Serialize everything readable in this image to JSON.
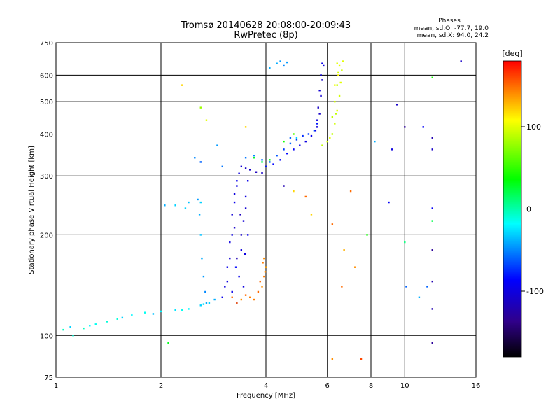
{
  "chart_data": {
    "type": "scatter",
    "title": "Tromsø 20140628 20:08:00-20:09:43",
    "subtitle": "RwPretec (8p)",
    "xlabel": "Frequency [MHz]",
    "ylabel": "Stationary phase Virtual Height [km]",
    "xscale": "log",
    "yscale": "log",
    "xlim": [
      1,
      16
    ],
    "ylim": [
      75,
      750
    ],
    "xticks": [
      1,
      2,
      4,
      6,
      8,
      10,
      16
    ],
    "yticks": [
      75,
      100,
      200,
      300,
      400,
      500,
      600,
      750
    ],
    "x_gridlines": [
      2,
      4,
      6,
      8,
      10
    ],
    "y_gridlines": [
      100,
      200,
      300,
      400,
      500,
      600
    ],
    "grid": true,
    "phases_box": {
      "heading": "Phases",
      "line_o": "mean, sd,O: -77.7, 19.0",
      "line_x": "mean, sd,X:  94.0, 24.2"
    },
    "colorbar": {
      "label": "[deg]",
      "range": [
        -180,
        180
      ],
      "ticks": [
        100,
        0,
        -100
      ],
      "colormap": [
        "#000000",
        "#30008a",
        "#0000ff",
        "#00ffff",
        "#00ff00",
        "#ffff00",
        "#ff0000"
      ]
    },
    "series": [
      {
        "points": [
          [
            1.05,
            104,
            -5
          ],
          [
            1.12,
            100,
            -10
          ],
          [
            1.2,
            105,
            -5
          ],
          [
            1.3,
            108,
            -15
          ],
          [
            1.4,
            110,
            -10
          ],
          [
            1.5,
            112,
            -10
          ],
          [
            1.65,
            115,
            -20
          ],
          [
            1.8,
            117,
            -15
          ],
          [
            2.0,
            118,
            -20
          ],
          [
            2.2,
            119,
            -25
          ],
          [
            2.4,
            120,
            -20
          ],
          [
            2.6,
            123,
            -30
          ],
          [
            2.75,
            125,
            -30
          ],
          [
            2.85,
            128,
            -40
          ],
          [
            1.1,
            106,
            -30
          ],
          [
            1.25,
            107,
            -20
          ],
          [
            1.55,
            113,
            -30
          ],
          [
            1.9,
            116,
            -35
          ],
          [
            2.3,
            119,
            -15
          ],
          [
            2.65,
            124,
            -25
          ],
          [
            2.05,
            245,
            -40
          ],
          [
            2.2,
            245,
            -30
          ],
          [
            2.4,
            250,
            -35
          ],
          [
            2.55,
            255,
            -45
          ],
          [
            2.35,
            240,
            -30
          ],
          [
            2.6,
            250,
            -30
          ],
          [
            2.58,
            230,
            -40
          ],
          [
            2.6,
            200,
            -35
          ],
          [
            2.62,
            170,
            -40
          ],
          [
            2.65,
            150,
            -45
          ],
          [
            2.68,
            135,
            -50
          ],
          [
            2.7,
            125,
            -40
          ],
          [
            2.5,
            340,
            -50
          ],
          [
            2.6,
            330,
            -60
          ],
          [
            2.9,
            370,
            -45
          ],
          [
            3.0,
            320,
            -55
          ],
          [
            3.0,
            130,
            -95
          ],
          [
            3.05,
            140,
            -100
          ],
          [
            3.1,
            160,
            -95
          ],
          [
            3.15,
            190,
            -100
          ],
          [
            3.2,
            230,
            -105
          ],
          [
            3.25,
            265,
            -100
          ],
          [
            3.3,
            290,
            -95
          ],
          [
            3.35,
            305,
            -100
          ],
          [
            3.4,
            320,
            -105
          ],
          [
            3.5,
            316,
            -110
          ],
          [
            3.6,
            313,
            -110
          ],
          [
            3.75,
            308,
            -115
          ],
          [
            3.9,
            306,
            -110
          ],
          [
            3.1,
            145,
            -100
          ],
          [
            3.15,
            170,
            -105
          ],
          [
            3.2,
            200,
            -100
          ],
          [
            3.25,
            250,
            -95
          ],
          [
            3.3,
            280,
            -100
          ],
          [
            3.35,
            150,
            -95
          ],
          [
            3.4,
            180,
            -100
          ],
          [
            3.45,
            220,
            -105
          ],
          [
            3.5,
            260,
            -100
          ],
          [
            3.55,
            290,
            -95
          ],
          [
            3.3,
            170,
            -120
          ],
          [
            3.25,
            210,
            -110
          ],
          [
            3.45,
            140,
            -100
          ],
          [
            3.2,
            135,
            -95
          ],
          [
            3.3,
            125,
            -90
          ],
          [
            3.4,
            200,
            -110
          ],
          [
            3.5,
            240,
            -105
          ],
          [
            3.28,
            160,
            -85
          ],
          [
            3.38,
            230,
            -115
          ],
          [
            3.48,
            175,
            -100
          ],
          [
            3.55,
            200,
            -95
          ],
          [
            3.5,
            340,
            -55
          ],
          [
            3.7,
            345,
            -50
          ],
          [
            3.9,
            335,
            -55
          ],
          [
            4.1,
            330,
            -60
          ],
          [
            4.3,
            345,
            -65
          ],
          [
            4.5,
            360,
            -70
          ],
          [
            4.7,
            375,
            -60
          ],
          [
            4.9,
            385,
            -70
          ],
          [
            5.1,
            395,
            -75
          ],
          [
            5.3,
            400,
            -70
          ],
          [
            5.5,
            410,
            -65
          ],
          [
            5.6,
            430,
            -80
          ],
          [
            4.0,
            320,
            -80
          ],
          [
            4.2,
            325,
            -85
          ],
          [
            4.4,
            335,
            -90
          ],
          [
            4.6,
            350,
            -85
          ],
          [
            4.8,
            360,
            -90
          ],
          [
            5.0,
            370,
            -95
          ],
          [
            5.2,
            380,
            -100
          ],
          [
            5.4,
            395,
            -95
          ],
          [
            5.6,
            420,
            -100
          ],
          [
            5.7,
            460,
            -110
          ],
          [
            5.75,
            520,
            -105
          ],
          [
            5.8,
            580,
            -110
          ],
          [
            5.85,
            640,
            -100
          ],
          [
            5.6,
            440,
            -100
          ],
          [
            5.65,
            480,
            -110
          ],
          [
            5.7,
            540,
            -105
          ],
          [
            5.75,
            600,
            -100
          ],
          [
            5.8,
            650,
            -95
          ],
          [
            5.55,
            410,
            -95
          ],
          [
            4.3,
            650,
            -40
          ],
          [
            4.5,
            640,
            -50
          ],
          [
            4.6,
            655,
            -45
          ],
          [
            4.1,
            630,
            -40
          ],
          [
            4.4,
            660,
            -45
          ],
          [
            3.7,
            340,
            30
          ],
          [
            3.9,
            330,
            20
          ],
          [
            4.1,
            335,
            30
          ],
          [
            4.5,
            380,
            40
          ],
          [
            4.8,
            400,
            60
          ],
          [
            4.9,
            390,
            -30
          ],
          [
            4.7,
            390,
            -60
          ],
          [
            3.2,
            130,
            150
          ],
          [
            3.4,
            128,
            140
          ],
          [
            3.6,
            130,
            145
          ],
          [
            3.8,
            135,
            150
          ],
          [
            3.9,
            140,
            140
          ],
          [
            3.95,
            150,
            145
          ],
          [
            4.0,
            160,
            135
          ],
          [
            3.95,
            170,
            140
          ],
          [
            3.3,
            125,
            155
          ],
          [
            3.5,
            132,
            150
          ],
          [
            3.7,
            128,
            145
          ],
          [
            3.85,
            145,
            150
          ],
          [
            3.98,
            155,
            140
          ],
          [
            3.92,
            165,
            145
          ],
          [
            5.8,
            370,
            90
          ],
          [
            6.0,
            380,
            95
          ],
          [
            6.1,
            390,
            100
          ],
          [
            6.2,
            400,
            90
          ],
          [
            6.3,
            430,
            95
          ],
          [
            6.4,
            470,
            100
          ],
          [
            6.5,
            520,
            95
          ],
          [
            6.55,
            570,
            100
          ],
          [
            6.6,
            620,
            95
          ],
          [
            6.65,
            660,
            100
          ],
          [
            6.2,
            450,
            90
          ],
          [
            6.3,
            500,
            95
          ],
          [
            6.4,
            560,
            90
          ],
          [
            6.45,
            610,
            95
          ],
          [
            6.5,
            640,
            100
          ],
          [
            6.35,
            460,
            90
          ],
          [
            6.3,
            560,
            105
          ],
          [
            6.45,
            600,
            110
          ],
          [
            6.4,
            650,
            100
          ],
          [
            6.2,
            85,
            140
          ],
          [
            6.2,
            215,
            150
          ],
          [
            6.6,
            140,
            150
          ],
          [
            6.7,
            180,
            130
          ],
          [
            7.0,
            270,
            150
          ],
          [
            7.2,
            160,
            140
          ],
          [
            7.5,
            85,
            160
          ],
          [
            8.2,
            380,
            -40
          ],
          [
            9.0,
            250,
            -90
          ],
          [
            9.2,
            360,
            -100
          ],
          [
            9.5,
            490,
            -110
          ],
          [
            10.0,
            420,
            -130
          ],
          [
            10.0,
            190,
            10
          ],
          [
            10.1,
            140,
            -60
          ],
          [
            11.0,
            130,
            -40
          ],
          [
            11.3,
            420,
            -90
          ],
          [
            11.6,
            140,
            -60
          ],
          [
            12.0,
            390,
            -120
          ],
          [
            12.0,
            360,
            -110
          ],
          [
            12.0,
            240,
            -90
          ],
          [
            12.0,
            220,
            20
          ],
          [
            12.0,
            180,
            -130
          ],
          [
            12.0,
            145,
            -120
          ],
          [
            12.0,
            120,
            -120
          ],
          [
            12.0,
            95,
            -130
          ],
          [
            12.0,
            590,
            40
          ],
          [
            14.5,
            660,
            -110
          ],
          [
            2.3,
            560,
            120
          ],
          [
            2.6,
            480,
            80
          ],
          [
            2.7,
            440,
            100
          ],
          [
            3.5,
            420,
            120
          ],
          [
            4.5,
            280,
            -120
          ],
          [
            4.8,
            270,
            120
          ],
          [
            5.2,
            260,
            150
          ],
          [
            7.8,
            200,
            40
          ],
          [
            5.4,
            230,
            120
          ],
          [
            2.1,
            95,
            30
          ]
        ]
      }
    ]
  }
}
